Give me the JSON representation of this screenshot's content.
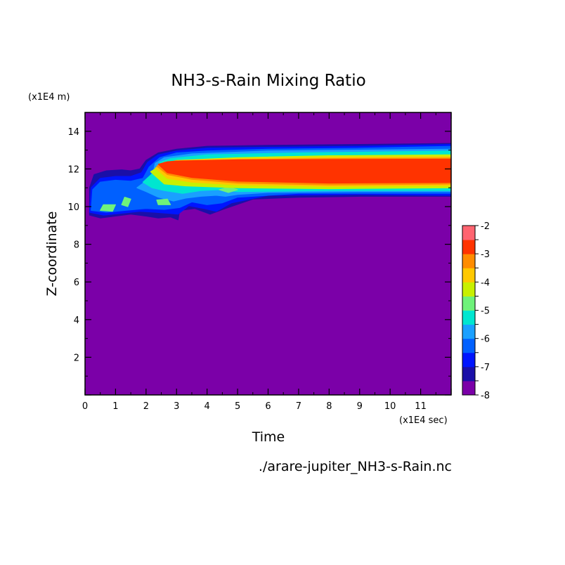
{
  "chart_data": {
    "type": "heatmap",
    "title": "NH3-s-Rain Mixing Ratio",
    "xlabel": "Time",
    "ylabel": "Z-coordinate",
    "x_unit": "(x1E4 sec)",
    "y_unit": "(x1E4 m)",
    "source": "./arare-jupiter_NH3-s-Rain.nc",
    "xlim": [
      0,
      12
    ],
    "ylim": [
      0,
      15
    ],
    "x_ticks": [
      "0",
      "1",
      "2",
      "3",
      "4",
      "5",
      "6",
      "7",
      "8",
      "9",
      "10",
      "11"
    ],
    "y_ticks": [
      "2",
      "4",
      "6",
      "8",
      "10",
      "12",
      "14"
    ],
    "x_tick_values": [
      0,
      1,
      2,
      3,
      4,
      5,
      6,
      7,
      8,
      9,
      10,
      11
    ],
    "y_tick_values": [
      2,
      4,
      6,
      8,
      10,
      12,
      14
    ],
    "background_level": -8,
    "colorbar": {
      "levels": [
        -8,
        -7.5,
        -7,
        -6.5,
        -6,
        -5.5,
        -5,
        -4.5,
        -4,
        -3.5,
        -3,
        -2.5,
        -2
      ],
      "labels": [
        "-8",
        "-7",
        "-6",
        "-5",
        "-4",
        "-3",
        "-2"
      ],
      "label_values": [
        -8,
        -7,
        -6,
        -5,
        -4,
        -3,
        -2
      ],
      "colors": [
        "#7b00a8",
        "#1a0fa8",
        "#0015ff",
        "#0060ff",
        "#1aa0ff",
        "#00e6d0",
        "#6ef27a",
        "#c8f000",
        "#ffc800",
        "#ff8c00",
        "#ff3300",
        "#ff6470"
      ]
    },
    "regions": [
      {
        "value": -7.5,
        "points": [
          [
            0.15,
            9.55
          ],
          [
            0.5,
            9.4
          ],
          [
            1.0,
            9.5
          ],
          [
            1.5,
            9.6
          ],
          [
            2.0,
            9.5
          ],
          [
            2.4,
            9.4
          ],
          [
            2.8,
            9.45
          ],
          [
            3.05,
            9.3
          ],
          [
            3.1,
            9.8
          ],
          [
            3.6,
            9.9
          ],
          [
            4.1,
            9.6
          ],
          [
            4.6,
            9.9
          ],
          [
            5.5,
            10.4
          ],
          [
            7.0,
            10.5
          ],
          [
            9.0,
            10.55
          ],
          [
            12.0,
            10.55
          ],
          [
            12.0,
            13.35
          ],
          [
            9.0,
            13.3
          ],
          [
            6.0,
            13.25
          ],
          [
            4.0,
            13.2
          ],
          [
            3.0,
            13.05
          ],
          [
            2.4,
            12.85
          ],
          [
            2.0,
            12.45
          ],
          [
            1.8,
            12.0
          ],
          [
            1.5,
            11.9
          ],
          [
            1.2,
            11.95
          ],
          [
            0.7,
            11.9
          ],
          [
            0.3,
            11.7
          ],
          [
            0.15,
            11.0
          ]
        ]
      },
      {
        "value": -7.0,
        "points": [
          [
            0.15,
            9.7
          ],
          [
            0.6,
            9.55
          ],
          [
            1.2,
            9.65
          ],
          [
            1.8,
            9.75
          ],
          [
            2.3,
            9.7
          ],
          [
            2.7,
            9.65
          ],
          [
            3.05,
            9.6
          ],
          [
            3.4,
            10.05
          ],
          [
            3.9,
            9.9
          ],
          [
            4.3,
            9.75
          ],
          [
            4.8,
            10.2
          ],
          [
            6.0,
            10.6
          ],
          [
            9.0,
            10.65
          ],
          [
            12.0,
            10.6
          ],
          [
            12.0,
            13.3
          ],
          [
            9.0,
            13.2
          ],
          [
            6.0,
            13.15
          ],
          [
            4.0,
            13.1
          ],
          [
            3.0,
            12.95
          ],
          [
            2.4,
            12.75
          ],
          [
            2.05,
            12.35
          ],
          [
            1.85,
            11.8
          ],
          [
            1.5,
            11.6
          ],
          [
            1.0,
            11.6
          ],
          [
            0.5,
            11.5
          ],
          [
            0.2,
            11.0
          ]
        ]
      },
      {
        "value": -6.5,
        "points": [
          [
            0.2,
            9.8
          ],
          [
            0.7,
            9.7
          ],
          [
            1.3,
            9.8
          ],
          [
            2.0,
            9.9
          ],
          [
            2.6,
            9.85
          ],
          [
            3.1,
            9.95
          ],
          [
            3.5,
            10.25
          ],
          [
            4.0,
            10.1
          ],
          [
            4.5,
            10.2
          ],
          [
            5.0,
            10.5
          ],
          [
            7.0,
            10.7
          ],
          [
            12.0,
            10.7
          ],
          [
            12.0,
            13.2
          ],
          [
            9.0,
            13.1
          ],
          [
            6.0,
            13.05
          ],
          [
            4.0,
            12.95
          ],
          [
            3.0,
            12.85
          ],
          [
            2.45,
            12.6
          ],
          [
            2.1,
            12.1
          ],
          [
            1.9,
            11.5
          ],
          [
            1.5,
            11.35
          ],
          [
            1.0,
            11.4
          ],
          [
            0.5,
            11.3
          ],
          [
            0.25,
            10.9
          ]
        ]
      },
      {
        "value": -6.0,
        "points": [
          [
            1.7,
            11.0
          ],
          [
            2.2,
            11.6
          ],
          [
            2.3,
            12.3
          ],
          [
            2.6,
            12.6
          ],
          [
            3.5,
            12.8
          ],
          [
            6.0,
            12.95
          ],
          [
            9.0,
            13.0
          ],
          [
            12.0,
            13.05
          ],
          [
            12.0,
            10.8
          ],
          [
            9.0,
            10.8
          ],
          [
            6.0,
            10.75
          ],
          [
            5.0,
            10.65
          ],
          [
            4.6,
            10.55
          ],
          [
            4.3,
            10.6
          ],
          [
            3.8,
            10.55
          ],
          [
            3.3,
            10.45
          ],
          [
            2.9,
            10.3
          ],
          [
            2.4,
            10.5
          ],
          [
            2.0,
            10.8
          ]
        ]
      },
      {
        "value": -5.5,
        "points": [
          [
            1.9,
            11.3
          ],
          [
            2.3,
            11.9
          ],
          [
            2.45,
            12.35
          ],
          [
            2.8,
            12.55
          ],
          [
            4.0,
            12.75
          ],
          [
            7.0,
            12.85
          ],
          [
            12.0,
            12.95
          ],
          [
            12.0,
            10.85
          ],
          [
            8.0,
            10.85
          ],
          [
            5.0,
            10.8
          ],
          [
            4.4,
            10.9
          ],
          [
            3.8,
            10.85
          ],
          [
            3.2,
            10.7
          ],
          [
            2.6,
            10.85
          ],
          [
            2.2,
            11.0
          ]
        ]
      },
      {
        "value": -5.0,
        "points": [
          [
            0.5,
            9.8
          ],
          [
            0.9,
            9.75
          ],
          [
            1.0,
            10.1
          ],
          [
            0.6,
            10.1
          ]
        ]
      },
      {
        "value": -5.0,
        "points": [
          [
            1.2,
            10.1
          ],
          [
            1.4,
            10.0
          ],
          [
            1.5,
            10.4
          ],
          [
            1.3,
            10.5
          ]
        ]
      },
      {
        "value": -5.0,
        "points": [
          [
            2.4,
            10.1
          ],
          [
            2.8,
            10.1
          ],
          [
            2.7,
            10.4
          ],
          [
            2.35,
            10.35
          ]
        ]
      },
      {
        "value": -5.0,
        "points": [
          [
            4.4,
            10.9
          ],
          [
            4.7,
            10.75
          ],
          [
            5.0,
            10.9
          ],
          [
            4.7,
            11.05
          ]
        ]
      },
      {
        "value": -4.5,
        "points": [
          [
            2.15,
            11.85
          ],
          [
            2.5,
            12.2
          ],
          [
            3.0,
            12.45
          ],
          [
            5.0,
            12.6
          ],
          [
            8.0,
            12.7
          ],
          [
            12.0,
            12.75
          ],
          [
            12.0,
            11.0
          ],
          [
            8.0,
            10.95
          ],
          [
            5.0,
            11.0
          ],
          [
            3.3,
            11.1
          ],
          [
            2.6,
            11.2
          ]
        ]
      },
      {
        "value": -4.0,
        "points": [
          [
            2.3,
            12.05
          ],
          [
            2.6,
            12.3
          ],
          [
            3.0,
            12.45
          ],
          [
            5.0,
            12.55
          ],
          [
            8.0,
            12.62
          ],
          [
            12.0,
            12.65
          ],
          [
            12.0,
            11.12
          ],
          [
            8.0,
            11.08
          ],
          [
            5.0,
            11.15
          ],
          [
            3.5,
            11.3
          ],
          [
            2.7,
            11.5
          ]
        ]
      },
      {
        "value": -3.5,
        "points": [
          [
            2.35,
            12.15
          ],
          [
            2.6,
            12.35
          ],
          [
            3.0,
            12.42
          ],
          [
            5.0,
            12.5
          ],
          [
            8.0,
            12.55
          ],
          [
            12.0,
            12.58
          ],
          [
            12.0,
            11.2
          ],
          [
            8.0,
            11.15
          ],
          [
            5.0,
            11.25
          ],
          [
            3.5,
            11.45
          ],
          [
            2.7,
            11.7
          ]
        ]
      },
      {
        "value": -3.0,
        "points": [
          [
            2.4,
            12.25
          ],
          [
            2.7,
            12.38
          ],
          [
            3.0,
            12.42
          ],
          [
            5.0,
            12.48
          ],
          [
            8.0,
            12.5
          ],
          [
            12.0,
            12.52
          ],
          [
            12.0,
            11.28
          ],
          [
            8.0,
            11.25
          ],
          [
            5.0,
            11.35
          ],
          [
            3.5,
            11.55
          ],
          [
            2.7,
            11.8
          ]
        ]
      }
    ]
  }
}
